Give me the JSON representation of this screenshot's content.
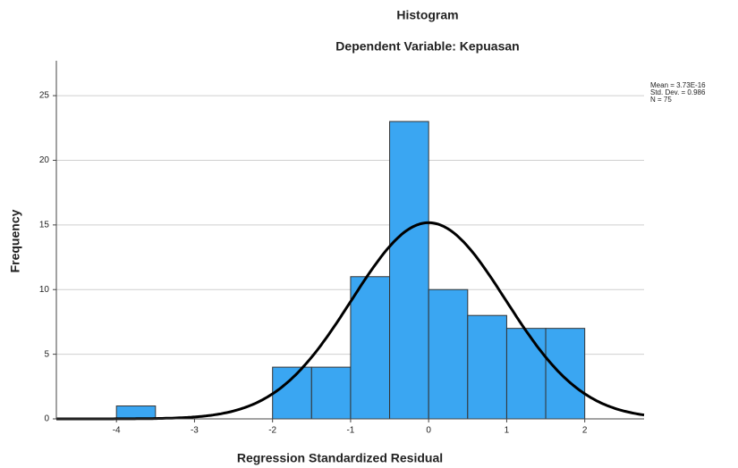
{
  "chart_data": {
    "type": "histogram",
    "title": "Histogram",
    "subtitle": "Dependent Variable: Kepuasan",
    "x_label": "Regression Standardized Residual",
    "y_label": "Frequency",
    "bins": [
      -4,
      -3.5,
      -3,
      -2.5,
      -2,
      -1.5,
      -1,
      -0.5,
      0,
      0.5,
      1,
      1.5,
      2
    ],
    "values": [
      1,
      0,
      0,
      0,
      4,
      4,
      11,
      23,
      10,
      8,
      7,
      7
    ],
    "color": "#3aa6f2",
    "curve_color": "#000000",
    "xlim": [
      -4.77,
      2.76
    ],
    "xticks": [
      -4,
      -3,
      -2,
      -1,
      0,
      1,
      2
    ],
    "ylim": [
      0,
      27.7
    ],
    "yticks": [
      0,
      5,
      10,
      15,
      20,
      25
    ],
    "grid": true,
    "stats": [
      {
        "value": 3.73e-16,
        "label": "Mean = 3.73E-16"
      },
      {
        "value": 0.986,
        "label": "Std. Dev. = 0.986"
      },
      {
        "value": 75,
        "label": "N = 75"
      }
    ]
  }
}
